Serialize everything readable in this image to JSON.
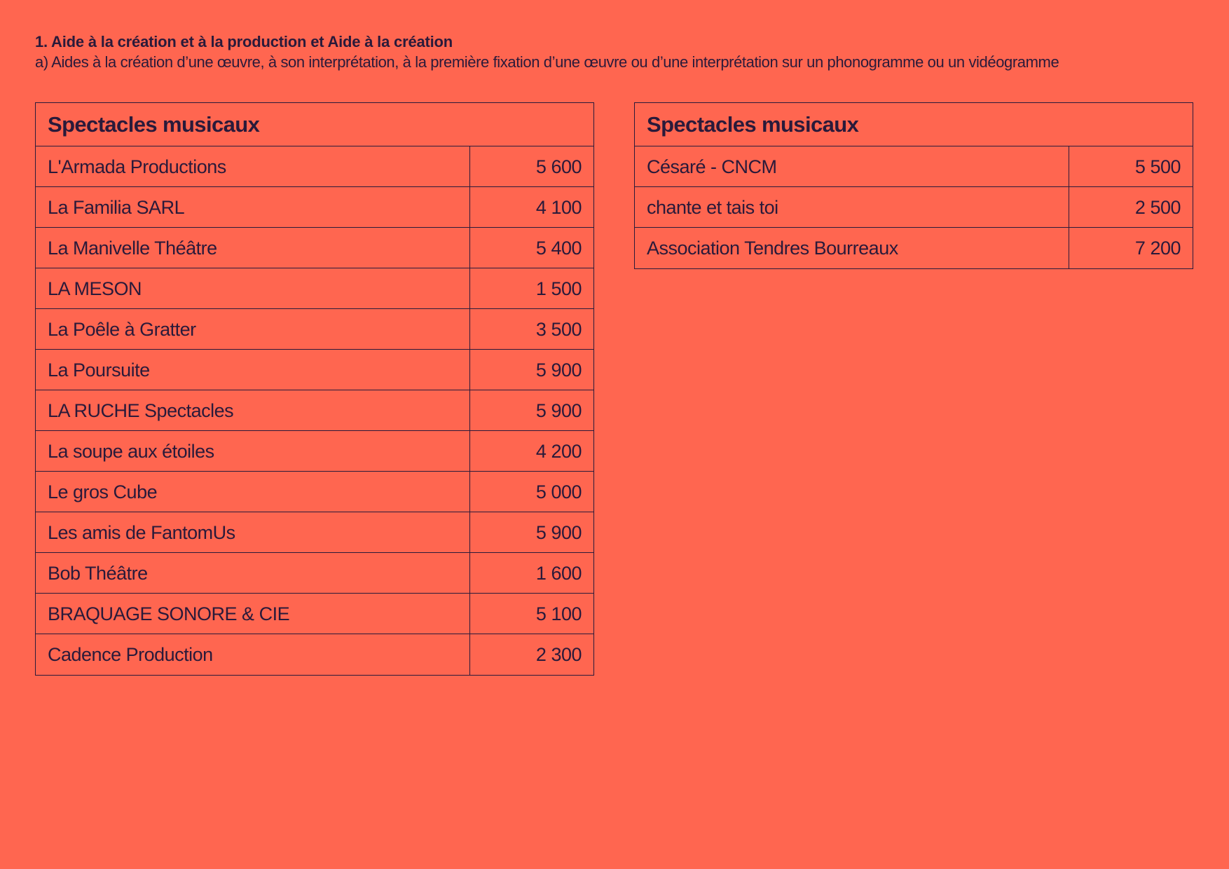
{
  "header": {
    "title": "1. Aide à la création et à la production et Aide à la création",
    "subtitle": "a) Aides à la création d’une œuvre, à son interprétation, à la première fixation d’une œuvre ou d’une interprétation sur un phonogramme ou un vidéogramme"
  },
  "tables": [
    {
      "title": "Spectacles musicaux",
      "rows": [
        {
          "name": "L'Armada Productions",
          "amount": "5 600"
        },
        {
          "name": "La Familia SARL",
          "amount": "4 100"
        },
        {
          "name": "La Manivelle Théâtre",
          "amount": "5 400"
        },
        {
          "name": "LA MESON",
          "amount": "1 500"
        },
        {
          "name": "La Poêle à Gratter",
          "amount": "3 500"
        },
        {
          "name": "La Poursuite",
          "amount": "5 900"
        },
        {
          "name": "LA RUCHE Spectacles",
          "amount": "5 900"
        },
        {
          "name": "La soupe aux étoiles",
          "amount": "4 200"
        },
        {
          "name": "Le gros Cube",
          "amount": "5 000"
        },
        {
          "name": "Les amis de FantomUs",
          "amount": "5 900"
        },
        {
          "name": "Bob Théâtre",
          "amount": "1 600"
        },
        {
          "name": "BRAQUAGE SONORE & CIE",
          "amount": "5 100"
        },
        {
          "name": "Cadence Production",
          "amount": "2 300"
        }
      ]
    },
    {
      "title": "Spectacles musicaux",
      "rows": [
        {
          "name": "Césaré - CNCM",
          "amount": "5 500"
        },
        {
          "name": "chante et tais toi",
          "amount": "2 500"
        },
        {
          "name": "Association Tendres Bourreaux",
          "amount": "7 200"
        }
      ]
    }
  ]
}
